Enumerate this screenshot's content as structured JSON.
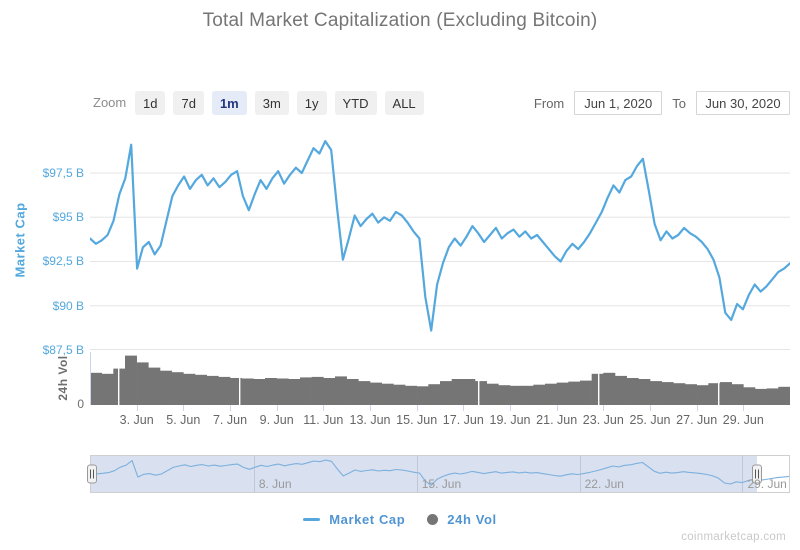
{
  "header": {
    "title": "Total Market Capitalization (Excluding Bitcoin)"
  },
  "toolbar": {
    "zoom_label": "Zoom",
    "buttons": [
      {
        "label": "1d",
        "selected": false
      },
      {
        "label": "7d",
        "selected": false
      },
      {
        "label": "1m",
        "selected": true
      },
      {
        "label": "3m",
        "selected": false
      },
      {
        "label": "1y",
        "selected": false
      },
      {
        "label": "YTD",
        "selected": false
      },
      {
        "label": "ALL",
        "selected": false
      }
    ],
    "from_label": "From",
    "from_value": "Jun 1, 2020",
    "to_label": "To",
    "to_value": "Jun 30, 2020"
  },
  "chart_data": {
    "type": "line",
    "title": "Total Market Capitalization (Excluding Bitcoin)",
    "x_range": [
      "Jun 1, 2020",
      "Jun 30, 2020"
    ],
    "x_ticks": [
      "3. Jun",
      "5. Jun",
      "7. Jun",
      "9. Jun",
      "11. Jun",
      "13. Jun",
      "15. Jun",
      "17. Jun",
      "19. Jun",
      "21. Jun",
      "23. Jun",
      "25. Jun",
      "27. Jun",
      "29. Jun"
    ],
    "x_tick_days": [
      3,
      5,
      7,
      9,
      11,
      13,
      15,
      17,
      19,
      21,
      23,
      25,
      27,
      29
    ],
    "days_in_range": 30,
    "y_axis_market_cap": {
      "label": "Market Cap",
      "unit": "USD billions",
      "ticks": [
        "$97,5 B",
        "$95 B",
        "$92,5 B",
        "$90 B",
        "$87,5 B"
      ],
      "tick_values": [
        97.5,
        95,
        92.5,
        90,
        87.5
      ],
      "ylim": [
        87.5,
        99.76
      ],
      "grid": true
    },
    "y_axis_volume": {
      "label": "24h Vol",
      "ticks": [
        "0"
      ]
    },
    "series": [
      {
        "name": "Market Cap",
        "type": "line",
        "color": "#54a8de",
        "points_per_day": 4,
        "values_billion_usd": [
          93.8,
          93.5,
          93.7,
          94.0,
          94.8,
          96.3,
          97.2,
          99.1,
          92.1,
          93.3,
          93.6,
          92.9,
          93.4,
          94.8,
          96.2,
          96.8,
          97.3,
          96.6,
          97.1,
          97.4,
          96.8,
          97.2,
          96.7,
          97.0,
          97.4,
          97.6,
          96.2,
          95.4,
          96.3,
          97.1,
          96.6,
          97.2,
          97.6,
          96.9,
          97.4,
          97.8,
          97.5,
          98.2,
          98.9,
          98.6,
          99.3,
          98.8,
          95.5,
          92.6,
          93.8,
          95.1,
          94.5,
          94.9,
          95.2,
          94.7,
          95.0,
          94.8,
          95.3,
          95.1,
          94.7,
          94.2,
          93.8,
          90.5,
          88.6,
          91.2,
          92.4,
          93.3,
          93.8,
          93.4,
          93.9,
          94.5,
          94.1,
          93.6,
          94.0,
          94.4,
          93.8,
          94.1,
          94.3,
          93.9,
          94.2,
          93.8,
          94.0,
          93.6,
          93.2,
          92.8,
          92.5,
          93.1,
          93.5,
          93.2,
          93.6,
          94.1,
          94.7,
          95.3,
          96.1,
          96.8,
          96.4,
          97.1,
          97.3,
          97.9,
          98.3,
          96.5,
          94.6,
          93.7,
          94.2,
          93.8,
          94.0,
          94.4,
          94.1,
          93.9,
          93.6,
          93.2,
          92.6,
          91.6,
          89.6,
          89.2,
          90.1,
          89.8,
          90.6,
          91.2,
          90.8,
          91.1,
          91.5,
          91.9,
          92.1,
          92.4
        ]
      },
      {
        "name": "24h Vol",
        "type": "column",
        "color": "#757575",
        "points_per_day": 2,
        "values_relative": [
          0.62,
          0.6,
          0.7,
          0.95,
          0.82,
          0.72,
          0.66,
          0.63,
          0.6,
          0.58,
          0.56,
          0.54,
          0.52,
          0.51,
          0.5,
          0.52,
          0.51,
          0.5,
          0.53,
          0.54,
          0.52,
          0.55,
          0.5,
          0.46,
          0.43,
          0.41,
          0.39,
          0.37,
          0.36,
          0.4,
          0.46,
          0.5,
          0.5,
          0.46,
          0.41,
          0.38,
          0.37,
          0.37,
          0.39,
          0.41,
          0.43,
          0.45,
          0.47,
          0.6,
          0.62,
          0.56,
          0.52,
          0.5,
          0.46,
          0.44,
          0.42,
          0.4,
          0.38,
          0.42,
          0.44,
          0.4,
          0.34,
          0.31,
          0.32,
          0.35
        ]
      }
    ],
    "navigator": {
      "labels": [
        {
          "day": 8,
          "label": "8. Jun"
        },
        {
          "day": 15,
          "label": "15. Jun"
        },
        {
          "day": 22,
          "label": "22. Jun"
        },
        {
          "day": 29,
          "label": "29. Jun"
        }
      ],
      "selected_fraction": [
        0,
        0.954
      ],
      "line_color": "#7cb0dd"
    },
    "legend_position": "bottom-center"
  },
  "legend": {
    "items": [
      {
        "label": "Market Cap",
        "marker": "line",
        "color": "#54a8de"
      },
      {
        "label": "24h Vol",
        "marker": "circle",
        "color": "#757575"
      }
    ]
  },
  "watermark": "coinmarketcap.com",
  "colors": {
    "accent_blue": "#54a8de",
    "volume_gray": "#757575",
    "grid": "#e6e6e6",
    "selected_button_bg": "#e6ebf8",
    "selected_button_text": "#24367e"
  }
}
